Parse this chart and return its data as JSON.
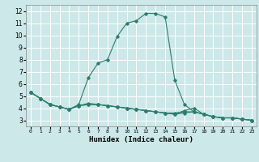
{
  "xlabel": "Humidex (Indice chaleur)",
  "xlim": [
    -0.5,
    23.5
  ],
  "ylim": [
    2.5,
    12.5
  ],
  "yticks": [
    3,
    4,
    5,
    6,
    7,
    8,
    9,
    10,
    11,
    12
  ],
  "xticks": [
    0,
    1,
    2,
    3,
    4,
    5,
    6,
    7,
    8,
    9,
    10,
    11,
    12,
    13,
    14,
    15,
    16,
    17,
    18,
    19,
    20,
    21,
    22,
    23
  ],
  "bg_color": "#cce8e8",
  "grid_color": "#ffffff",
  "line_color": "#2d7d6b",
  "curves": [
    [
      5.3,
      4.8,
      4.3,
      4.1,
      3.9,
      4.3,
      6.5,
      7.7,
      8.0,
      9.9,
      11.0,
      11.2,
      11.8,
      11.8,
      11.5,
      6.3,
      4.3,
      3.7,
      3.5,
      3.3,
      3.2,
      3.2,
      3.1,
      3.0
    ],
    [
      5.3,
      4.8,
      4.3,
      4.1,
      3.9,
      4.2,
      4.3,
      4.3,
      4.2,
      4.1,
      4.0,
      3.9,
      3.8,
      3.7,
      3.6,
      3.6,
      3.7,
      3.7,
      3.5,
      3.3,
      3.2,
      3.2,
      3.1,
      3.0
    ],
    [
      5.3,
      4.8,
      4.3,
      4.1,
      3.9,
      4.2,
      4.3,
      4.3,
      4.2,
      4.1,
      4.0,
      3.9,
      3.8,
      3.7,
      3.6,
      3.5,
      3.6,
      3.7,
      3.5,
      3.3,
      3.2,
      3.2,
      3.1,
      3.0
    ],
    [
      5.3,
      4.8,
      4.3,
      4.1,
      3.9,
      4.2,
      4.4,
      4.3,
      4.2,
      4.1,
      4.0,
      3.9,
      3.8,
      3.7,
      3.6,
      3.5,
      3.8,
      4.0,
      3.5,
      3.3,
      3.2,
      3.2,
      3.1,
      3.0
    ]
  ]
}
